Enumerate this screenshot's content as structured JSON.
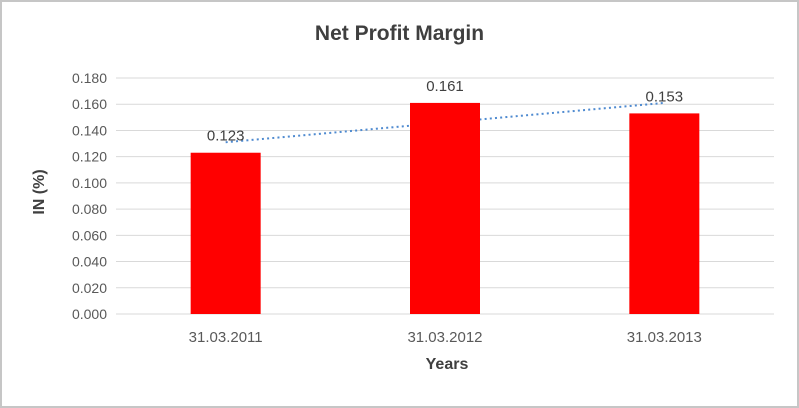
{
  "chart_data": {
    "type": "bar",
    "title": "Net Profit Margin",
    "xlabel": "Years",
    "ylabel": "IN (%)",
    "categories": [
      "31.03.2011",
      "31.03.2012",
      "31.03.2013"
    ],
    "values": [
      0.123,
      0.161,
      0.153
    ],
    "data_labels": [
      "0.123",
      "0.161",
      "0.153"
    ],
    "y_ticks": [
      "0.000",
      "0.020",
      "0.040",
      "0.060",
      "0.080",
      "0.100",
      "0.120",
      "0.140",
      "0.160",
      "0.180"
    ],
    "ylim": [
      0,
      0.18
    ],
    "grid": true,
    "legend": "none",
    "bar_color": "#FF0000",
    "trendline": {
      "type": "linear",
      "style": "dotted",
      "color": "#4E8AD0",
      "start_value": 0.131,
      "end_value": 0.161
    },
    "colors": {
      "title_text": "#3F3F3F",
      "tick_text": "#595959",
      "data_label_text": "#404040",
      "gridline": "#D9D9D9",
      "frame_border": "#C6C6C6",
      "background": "#FFFFFF"
    }
  }
}
